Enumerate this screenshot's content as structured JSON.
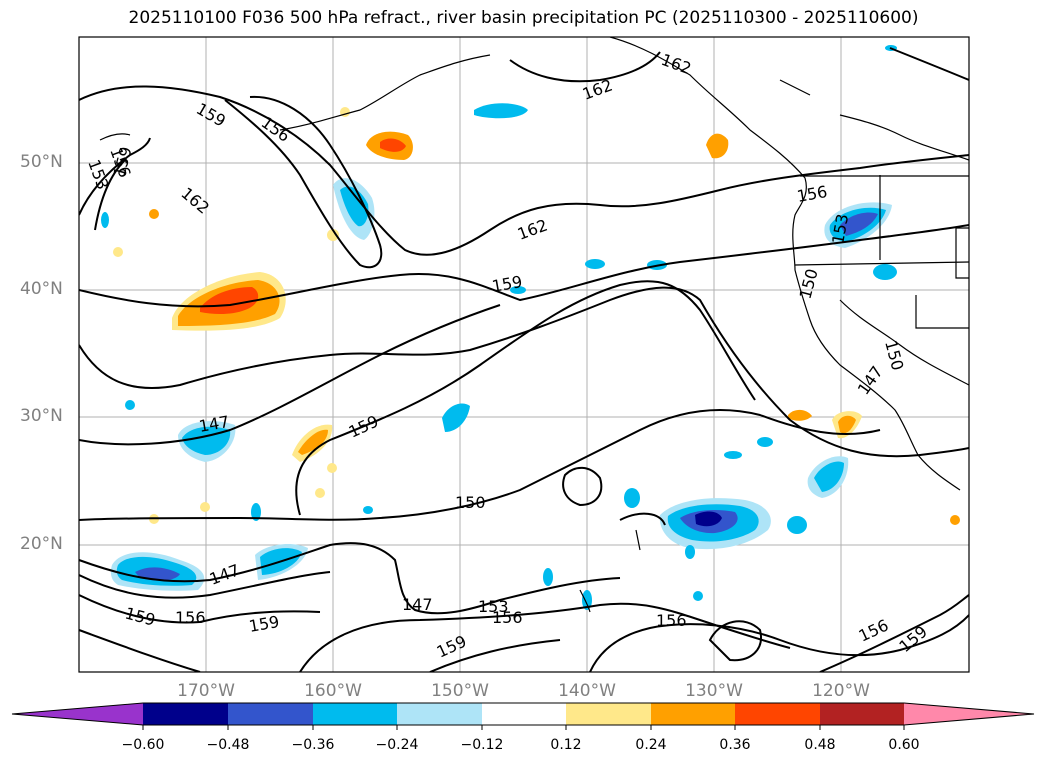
{
  "title": "2025110100 F036 500 hPa refract., river basin precipitation PC (2025110300 - 2025110600)",
  "axes": {
    "lat_labels": [
      "50°N",
      "40°N",
      "30°N",
      "20°N"
    ],
    "lon_labels": [
      "170°W",
      "160°W",
      "150°W",
      "140°W",
      "130°W",
      "120°W"
    ]
  },
  "contour_labels": [
    "159",
    "156",
    "153",
    "156",
    "159",
    "162",
    "162",
    "162",
    "159",
    "159",
    "147",
    "150",
    "147",
    "147",
    "153",
    "156",
    "159",
    "159",
    "156",
    "159",
    "156",
    "156",
    "159",
    "153",
    "150",
    "150",
    "147",
    "156",
    "162"
  ],
  "colorbar": {
    "tick_labels": [
      "−0.60",
      "−0.48",
      "−0.36",
      "−0.24",
      "−0.12",
      "0.12",
      "0.24",
      "0.36",
      "0.48",
      "0.60"
    ],
    "colors": [
      "#9933cc",
      "#00008b",
      "#3355cc",
      "#00bbee",
      "#aee4f7",
      "#ffffff",
      "#ffe88a",
      "#ffa000",
      "#ff4500",
      "#b22222",
      "#ff88aa"
    ]
  },
  "chart_data": {
    "type": "map-contour",
    "title": "2025110100 F036 500 hPa refract., river basin precipitation PC (2025110300 - 2025110600)",
    "field_contours": "500 hPa refractivity",
    "field_shaded": "river basin precipitation PC",
    "lon_range": [
      -180,
      -110
    ],
    "lat_range": [
      10,
      60
    ],
    "contour_levels": [
      147,
      150,
      153,
      156,
      159,
      162
    ],
    "shading_levels": [
      -0.6,
      -0.48,
      -0.36,
      -0.24,
      -0.12,
      0.12,
      0.24,
      0.36,
      0.48,
      0.6
    ]
  }
}
